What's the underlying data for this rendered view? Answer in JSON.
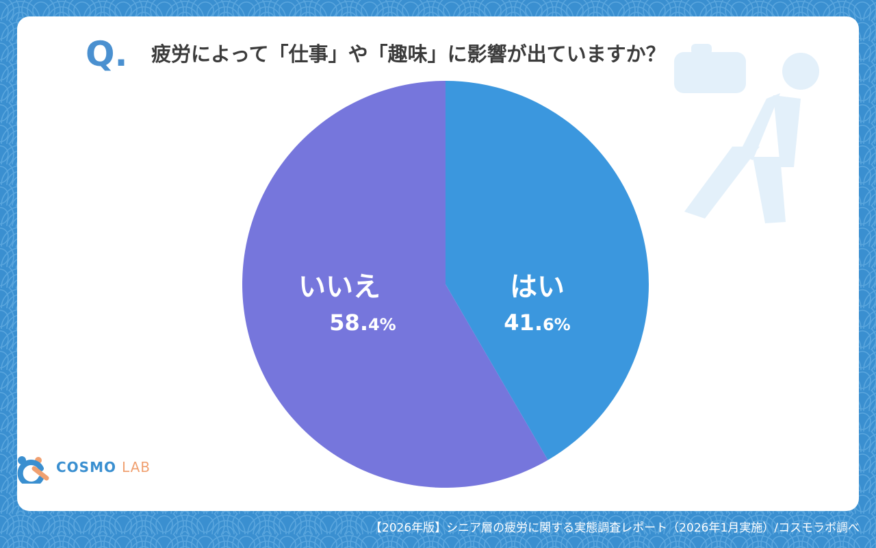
{
  "colors": {
    "background": "#3a8fd0",
    "card": "#ffffff",
    "accent": "#4a90d0",
    "yes": "#3b97de",
    "no": "#7676dc",
    "figure": "#e3f0fa",
    "logo_blue": "#3a8fd0",
    "logo_orange": "#f0a070"
  },
  "question": {
    "mark": "Q.",
    "text": "疲労によって「仕事」や「趣味」に影響が出ていますか？"
  },
  "chart_data": {
    "type": "pie",
    "title": "疲労によって「仕事」や「趣味」に影響が出ていますか？",
    "categories": [
      "はい",
      "いいえ"
    ],
    "values": [
      41.6,
      58.4
    ],
    "unit": "%",
    "colors": [
      "#3b97de",
      "#7676dc"
    ],
    "start": "top",
    "direction": "clockwise",
    "data_labels": [
      {
        "label": "はい",
        "int": "41.",
        "dec": "6",
        "unit": "%"
      },
      {
        "label": "いいえ",
        "int": "58.",
        "dec": "4",
        "unit": "%"
      }
    ]
  },
  "decoration": {
    "figure_icon": "tired-person-with-bag-icon"
  },
  "logo": {
    "icon": "cosmo-lab-logo-icon",
    "part1": "COSMO",
    "part2": "LAB"
  },
  "footer": {
    "text": "【2026年版】シニア層の疲労に関する実態調査レポート（2026年1月実施）/コスモラボ調べ"
  }
}
